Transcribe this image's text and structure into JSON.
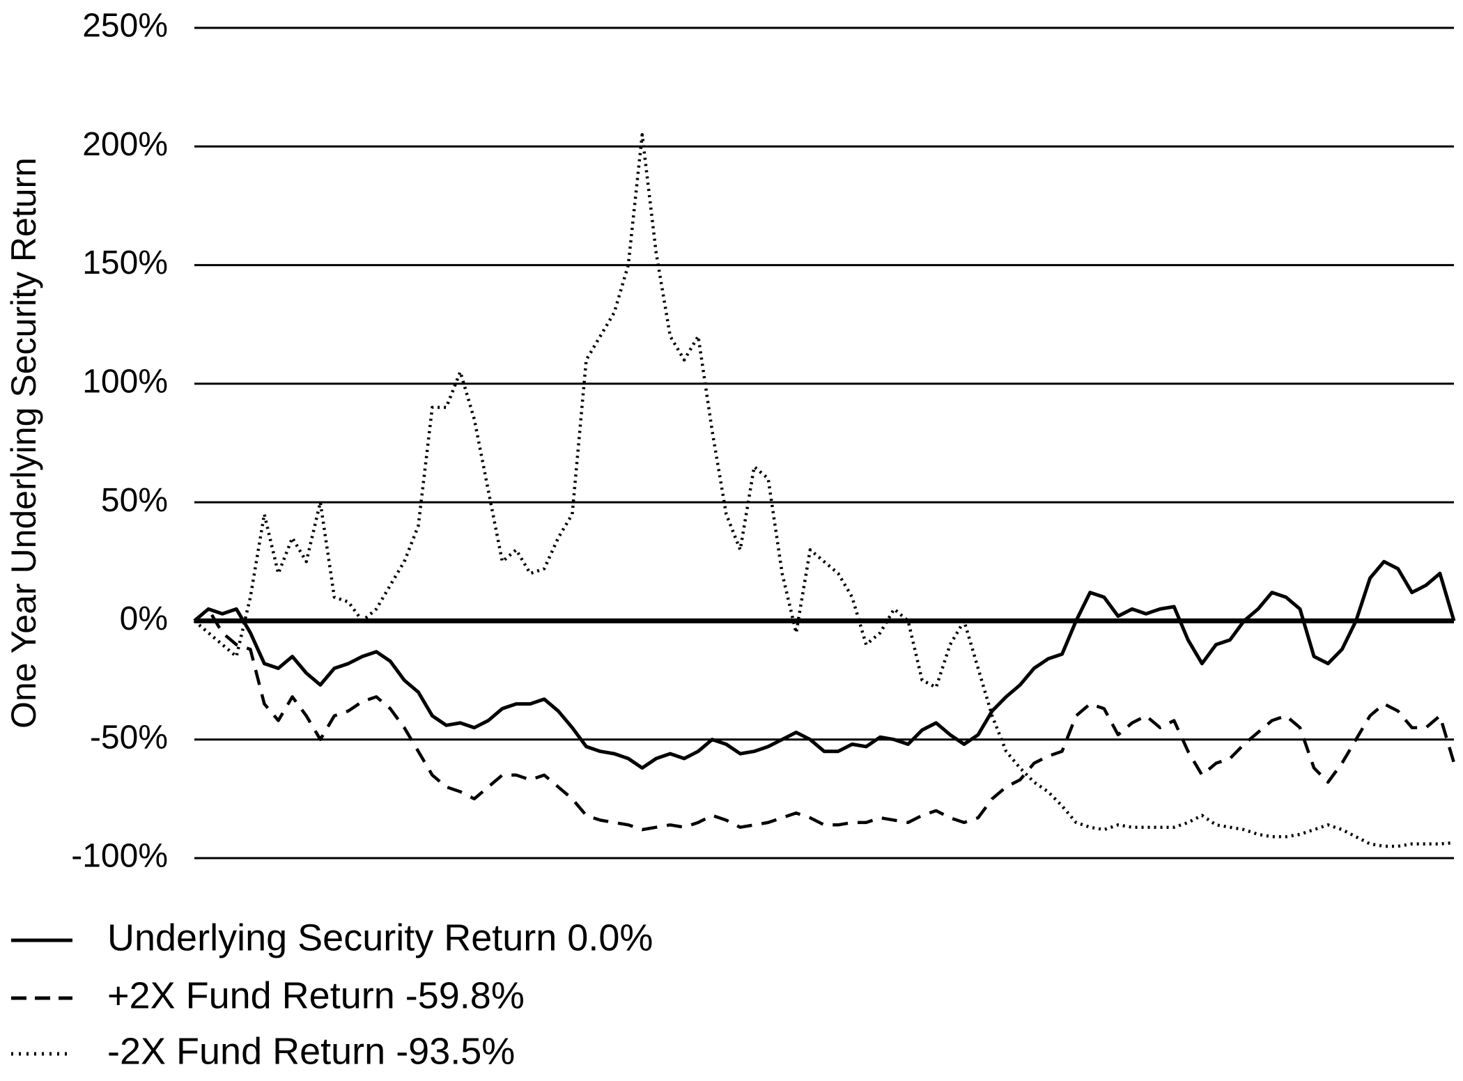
{
  "chart_data": {
    "type": "line",
    "ylabel": "One Year Underlying Security Return",
    "ylim": [
      -100,
      250
    ],
    "yticks": [
      {
        "value": -100,
        "label": "-100%"
      },
      {
        "value": -50,
        "label": "-50%"
      },
      {
        "value": 0,
        "label": "0%"
      },
      {
        "value": 50,
        "label": "50%"
      },
      {
        "value": 100,
        "label": "100%"
      },
      {
        "value": 150,
        "label": "150%"
      },
      {
        "value": 200,
        "label": "200%"
      },
      {
        "value": 250,
        "label": "250%"
      }
    ],
    "grid": true,
    "legend": "bottom-left",
    "series": [
      {
        "name": "Underlying Security Return 0.0%",
        "color": "#000000",
        "style": "solid",
        "values": [
          0,
          5,
          3,
          5,
          -5,
          -18,
          -20,
          -15,
          -22,
          -27,
          -20,
          -18,
          -15,
          -13,
          -17,
          -25,
          -30,
          -40,
          -44,
          -43,
          -45,
          -42,
          -37,
          -35,
          -35,
          -33,
          -38,
          -45,
          -53,
          -55,
          -56,
          -58,
          -62,
          -58,
          -56,
          -58,
          -55,
          -50,
          -52,
          -56,
          -55,
          -53,
          -50,
          -47,
          -50,
          -55,
          -55,
          -52,
          -53,
          -49,
          -50,
          -52,
          -46,
          -43,
          -48,
          -52,
          -48,
          -38,
          -32,
          -27,
          -20,
          -16,
          -14,
          0,
          12,
          10,
          2,
          5,
          3,
          5,
          6,
          -8,
          -18,
          -10,
          -8,
          0,
          5,
          12,
          10,
          5,
          -15,
          -18,
          -12,
          0,
          18,
          25,
          22,
          12,
          15,
          20,
          0
        ]
      },
      {
        "name": "+2X Fund Return -59.8%",
        "color": "#000000",
        "style": "dashed",
        "values": [
          0,
          5,
          -5,
          -10,
          -12,
          -35,
          -42,
          -32,
          -40,
          -50,
          -40,
          -38,
          -34,
          -32,
          -37,
          -45,
          -55,
          -65,
          -70,
          -72,
          -75,
          -70,
          -65,
          -65,
          -67,
          -65,
          -70,
          -75,
          -82,
          -84,
          -85,
          -86,
          -88,
          -87,
          -86,
          -87,
          -85,
          -82,
          -84,
          -87,
          -86,
          -85,
          -83,
          -81,
          -83,
          -86,
          -86,
          -85,
          -85,
          -83,
          -84,
          -85,
          -82,
          -80,
          -83,
          -85,
          -83,
          -75,
          -70,
          -67,
          -60,
          -57,
          -55,
          -40,
          -35,
          -37,
          -48,
          -43,
          -40,
          -45,
          -42,
          -55,
          -65,
          -60,
          -58,
          -52,
          -47,
          -42,
          -40,
          -45,
          -62,
          -68,
          -60,
          -50,
          -40,
          -35,
          -38,
          -45,
          -45,
          -40,
          -59.8
        ]
      },
      {
        "name": "-2X Fund Return -93.5%",
        "color": "#000000",
        "style": "dotted",
        "values": [
          0,
          -5,
          -10,
          -15,
          10,
          45,
          20,
          35,
          25,
          50,
          10,
          8,
          0,
          5,
          15,
          25,
          40,
          90,
          90,
          105,
          85,
          55,
          25,
          30,
          20,
          22,
          35,
          45,
          110,
          120,
          130,
          150,
          205,
          155,
          120,
          110,
          120,
          80,
          45,
          30,
          65,
          60,
          20,
          -5,
          30,
          25,
          20,
          10,
          -10,
          -5,
          5,
          0,
          -25,
          -28,
          -10,
          0,
          -20,
          -40,
          -55,
          -62,
          -68,
          -72,
          -78,
          -85,
          -87,
          -88,
          -86,
          -87,
          -87,
          -87,
          -87,
          -85,
          -82,
          -86,
          -87,
          -88,
          -90,
          -91,
          -91,
          -90,
          -88,
          -86,
          -88,
          -91,
          -94,
          -95,
          -95,
          -94,
          -94,
          -94,
          -93.5
        ]
      }
    ]
  }
}
